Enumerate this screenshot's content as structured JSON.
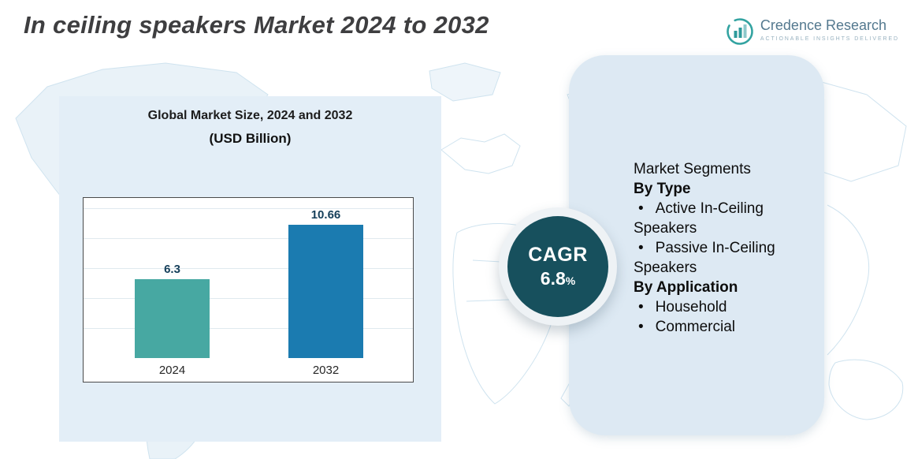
{
  "page": {
    "title": "In ceiling speakers Market 2024 to 2032"
  },
  "logo": {
    "name": "Credence Research",
    "tagline": "Actionable Insights Delivered"
  },
  "chart_data": {
    "type": "bar",
    "title": "Global Market Size, 2024 and 2032",
    "subtitle": "(USD Billion)",
    "categories": [
      "2024",
      "2032"
    ],
    "values": [
      6.3,
      10.66
    ],
    "unit": "USD Billion",
    "ylim": [
      0,
      12
    ],
    "grid": true,
    "legend_position": "none",
    "bar_colors": [
      "#47a8a2",
      "#1b7bb0"
    ]
  },
  "cagr": {
    "label": "CAGR",
    "value": "6.8",
    "suffix": "%"
  },
  "segments": {
    "title": "Market Segments",
    "by_type_heading": "By Type",
    "by_type_items": [
      "Active In-Ceiling Speakers",
      "Passive In-Ceiling Speakers"
    ],
    "by_application_heading": "By Application",
    "by_application_items": [
      "Household",
      "Commercial"
    ]
  },
  "colors": {
    "bar_2024": "#47a8a2",
    "bar_2032": "#1b7bb0",
    "cagr_circle": "#17505d",
    "left_panel_bg": "#e3eef7",
    "right_panel_bg": "#dde9f3",
    "logo_teal": "#33a3a1",
    "title_gray": "#3e3e40"
  }
}
